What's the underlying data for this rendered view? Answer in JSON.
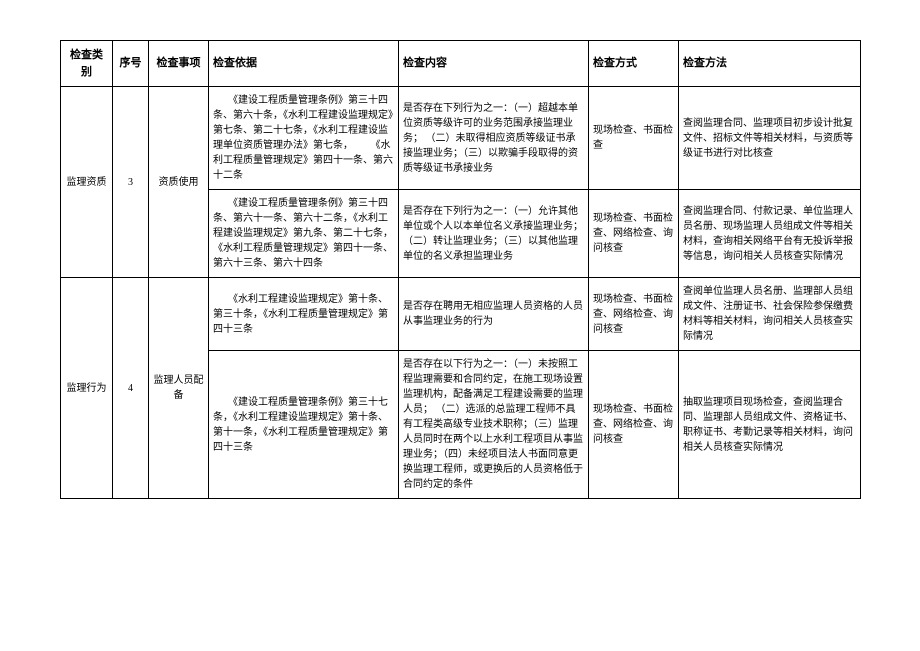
{
  "headers": {
    "category": "检查类别",
    "seq": "序号",
    "item": "检查事项",
    "basis": "检查依据",
    "content": "检查内容",
    "method": "检查方式",
    "approach": "检查方法"
  },
  "rows": [
    {
      "category": "监理资质",
      "seq": "3",
      "item": "资质使用",
      "sub": [
        {
          "basis": "　　《建设工程质量管理条例》第三十四条、第六十条，《水利工程建设监理规定》第七条、第二十七条，《水利工程建设监理单位资质管理办法》第七条，\n　　《水利工程质量管理规定》第四十一条、第六十二条",
          "content": "是否存在下列行为之一：（一）超越本单位资质等级许可的业务范围承接监理业务；\n（二）未取得相应资质等级证书承接监理业务；（三）以欺骗手段取得的资质等级证书承接业务",
          "method": "现场检查、书面检查",
          "approach": "查阅监理合同、监理项目初步设计批复文件、招标文件等相关材料，与资质等级证书进行对比核查"
        },
        {
          "basis": "　　《建设工程质量管理条例》第三十四条、第六十一条、第六十二条，《水利工程建设监理规定》第九条、第二十七条，《水利工程质量管理规定》第四十一条、第六十三条、第六十四条",
          "content": "是否存在下列行为之一：（一）允许其他单位或个人以本单位名义承接监理业务；（二）转让监理业务；（三）以其他监理单位的名义承担监理业务",
          "method": "现场检查、书面检查、网络检查、询问核查",
          "approach": "查阅监理合同、付款记录、单位监理人员名册、现场监理人员组成文件等相关材料，查询相关网络平台有无投诉举报等信息，询问相关人员核查实际情况"
        }
      ]
    },
    {
      "category": "监理行为",
      "seq": "4",
      "item": "监理人员配备",
      "sub": [
        {
          "basis": "　　《水利工程建设监理规定》第十条、第三十条，《水利工程质量管理规定》第四十三条",
          "content": "是否存在聘用无相应监理人员资格的人员从事监理业务的行为",
          "method": "现场检查、书面检查、网络检查、询问核查",
          "approach": "查阅单位监理人员名册、监理部人员组成文件、注册证书、社会保险参保缴费材料等相关材料，询问相关人员核查实际情况"
        },
        {
          "basis": "　　《建设工程质量管理条例》第三十七条，《水利工程建设监理规定》第十条、第十一条，《水利工程质量管理规定》第四十三条",
          "content": "是否存在以下行为之一：（一）未按照工程监理需要和合同约定，在施工现场设置监理机构，配备满足工程建设需要的监理人员；\n（二）选派的总监理工程师不具有工程类高级专业技术职称；（三）监理人员同时在两个以上水利工程项目从事监理业务；（四）未经项目法人书面同意更换监理工程师，或更换后的人员资格低于合同约定的条件",
          "method": "现场检查、书面检查、网络检查、询问核查",
          "approach": "抽取监理项目现场检查，查阅监理合同、监理部人员组成文件、资格证书、职称证书、考勤记录等相关材料，询问相关人员核查实际情况"
        }
      ]
    }
  ]
}
